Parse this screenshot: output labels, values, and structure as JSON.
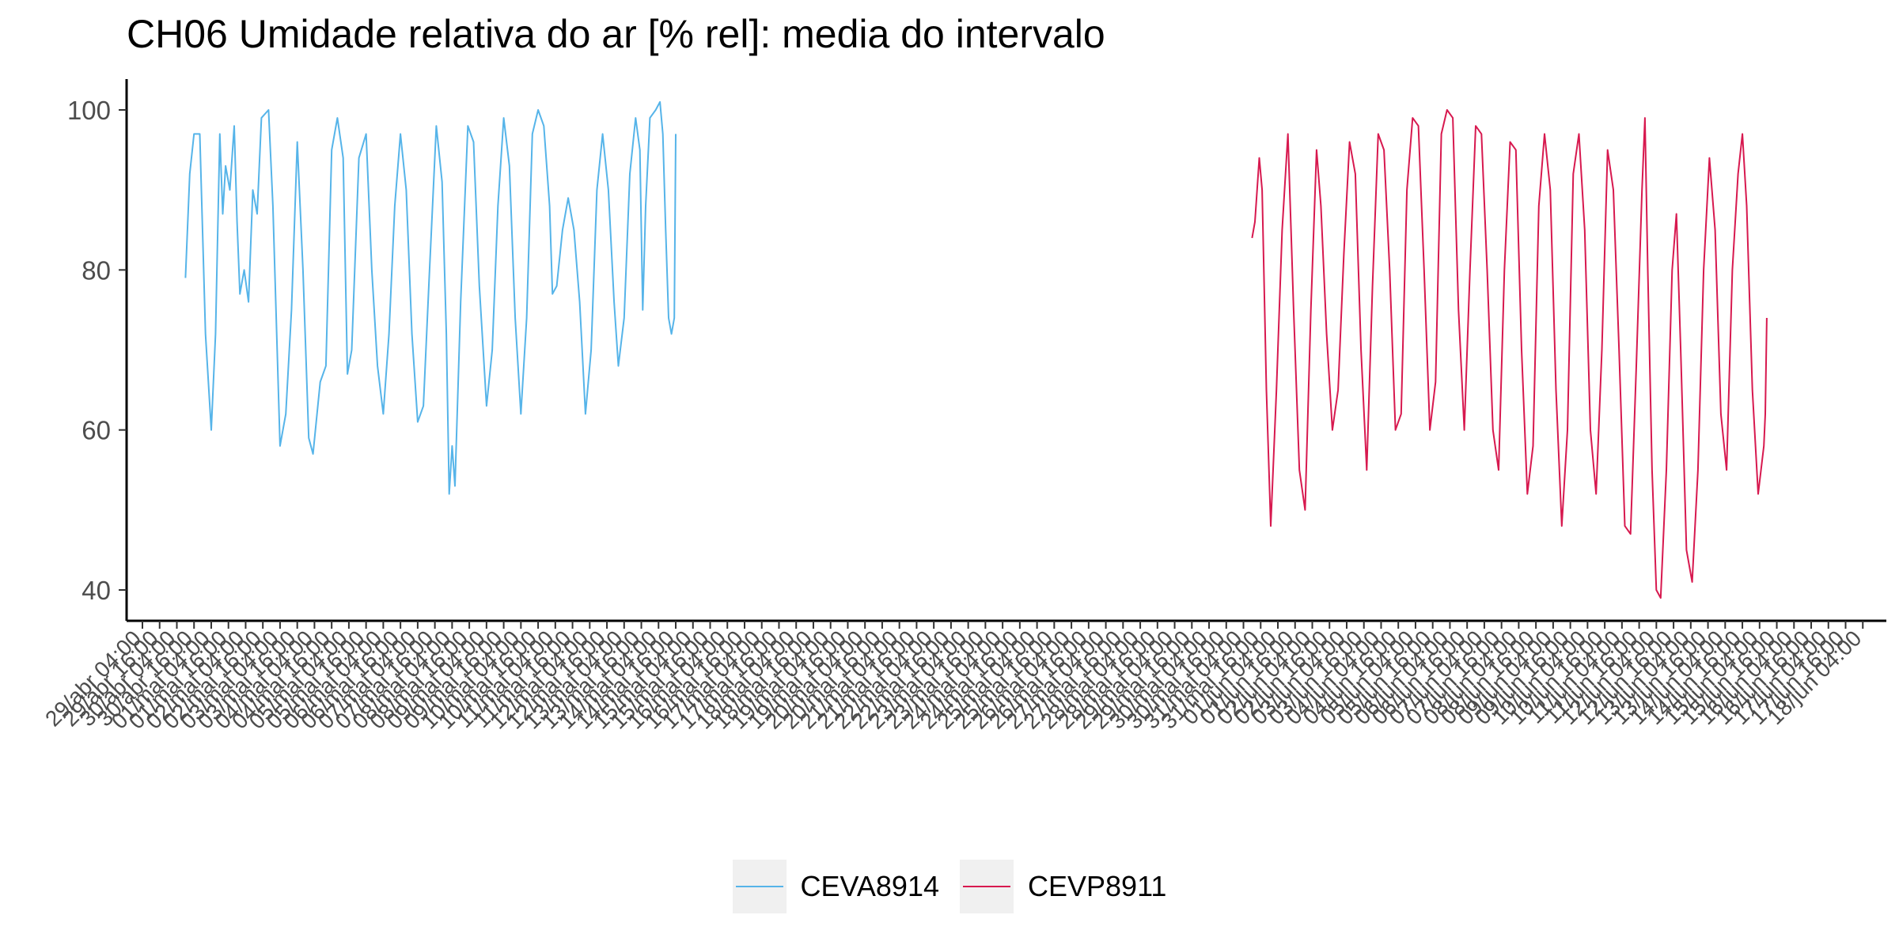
{
  "chart_data": {
    "type": "line",
    "title": "CH06 Umidade relativa do ar [% rel]: media do intervalo",
    "xlabel": "",
    "ylabel": "",
    "ylim": [
      36,
      104
    ],
    "yticks": [
      40,
      60,
      80,
      100
    ],
    "x_range": [
      "2024-04-29 04:00",
      "2024-06-18 16:00"
    ],
    "x_tick_start": "2024-04-29 04:00",
    "x_tick_step_hours": 12,
    "x_tick_count": 101,
    "x_tick_labels": [
      "29/abr 04:00",
      "29/abr 16:00",
      "30/abr 04:00",
      "30/abr 16:00",
      "01/mai 04:00",
      "01/mai 16:00",
      "02/mai 04:00",
      "02/mai 16:00",
      "03/mai 04:00",
      "03/mai 16:00",
      "04/mai 04:00",
      "04/mai 16:00",
      "05/mai 04:00",
      "05/mai 16:00",
      "06/mai 04:00",
      "06/mai 16:00",
      "07/mai 04:00",
      "07/mai 16:00",
      "08/mai 04:00",
      "08/mai 16:00",
      "09/mai 04:00",
      "09/mai 16:00",
      "10/mai 04:00",
      "10/mai 16:00",
      "11/mai 04:00",
      "11/mai 16:00",
      "12/mai 04:00",
      "12/mai 16:00",
      "13/mai 04:00",
      "13/mai 16:00",
      "14/mai 04:00",
      "14/mai 16:00",
      "15/mai 04:00",
      "15/mai 16:00",
      "16/mai 04:00",
      "16/mai 16:00",
      "17/mai 04:00",
      "17/mai 16:00",
      "18/mai 04:00",
      "18/mai 16:00",
      "19/mai 04:00",
      "19/mai 16:00",
      "20/mai 04:00",
      "20/mai 16:00",
      "21/mai 04:00",
      "21/mai 16:00",
      "22/mai 04:00",
      "22/mai 16:00",
      "23/mai 04:00",
      "23/mai 16:00",
      "24/mai 04:00",
      "24/mai 16:00",
      "25/mai 04:00",
      "25/mai 16:00",
      "26/mai 04:00",
      "26/mai 16:00",
      "27/mai 04:00",
      "27/mai 16:00",
      "28/mai 04:00",
      "28/mai 16:00",
      "29/mai 04:00",
      "29/mai 16:00",
      "30/mai 04:00",
      "30/mai 16:00",
      "31/mai 04:00",
      "31/mai 16:00",
      "01/jun 04:00",
      "01/jun 16:00",
      "02/jun 04:00",
      "02/jun 16:00",
      "03/jun 04:00",
      "03/jun 16:00",
      "04/jun 04:00",
      "04/jun 16:00",
      "05/jun 04:00",
      "05/jun 16:00",
      "06/jun 04:00",
      "06/jun 16:00",
      "07/jun 04:00",
      "07/jun 16:00",
      "08/jun 04:00",
      "08/jun 16:00",
      "09/jun 04:00",
      "09/jun 16:00",
      "10/jun 04:00",
      "10/jun 16:00",
      "11/jun 04:00",
      "11/jun 16:00",
      "12/jun 04:00",
      "12/jun 16:00",
      "13/jun 04:00",
      "13/jun 16:00",
      "14/jun 04:00",
      "14/jun 16:00",
      "15/jun 04:00",
      "15/jun 16:00",
      "16/jun 04:00",
      "16/jun 16:00",
      "17/jun 04:00",
      "17/jun 16:00",
      "18/jun 04:00"
    ],
    "grid": false,
    "legend_position": "bottom",
    "series": [
      {
        "name": "CEVA8914",
        "color": "#56B4E9",
        "points": [
          [
            "2024-04-30 10:00",
            79
          ],
          [
            "2024-04-30 13:00",
            92
          ],
          [
            "2024-04-30 16:00",
            97
          ],
          [
            "2024-04-30 20:00",
            97
          ],
          [
            "2024-05-01 00:00",
            72
          ],
          [
            "2024-05-01 04:00",
            60
          ],
          [
            "2024-05-01 07:00",
            72
          ],
          [
            "2024-05-01 10:00",
            97
          ],
          [
            "2024-05-01 12:00",
            87
          ],
          [
            "2024-05-01 14:00",
            93
          ],
          [
            "2024-05-01 17:00",
            90
          ],
          [
            "2024-05-01 20:00",
            98
          ],
          [
            "2024-05-01 22:00",
            86
          ],
          [
            "2024-05-02 00:00",
            77
          ],
          [
            "2024-05-02 03:00",
            80
          ],
          [
            "2024-05-02 06:00",
            76
          ],
          [
            "2024-05-02 09:00",
            90
          ],
          [
            "2024-05-02 12:00",
            87
          ],
          [
            "2024-05-02 15:00",
            99
          ],
          [
            "2024-05-02 20:00",
            100
          ],
          [
            "2024-05-02 23:00",
            88
          ],
          [
            "2024-05-03 04:00",
            58
          ],
          [
            "2024-05-03 08:00",
            62
          ],
          [
            "2024-05-03 12:00",
            75
          ],
          [
            "2024-05-03 16:00",
            96
          ],
          [
            "2024-05-03 20:00",
            80
          ],
          [
            "2024-05-04 00:00",
            59
          ],
          [
            "2024-05-04 03:00",
            57
          ],
          [
            "2024-05-04 08:00",
            66
          ],
          [
            "2024-05-04 12:00",
            68
          ],
          [
            "2024-05-04 16:00",
            95
          ],
          [
            "2024-05-04 20:00",
            99
          ],
          [
            "2024-05-05 00:00",
            94
          ],
          [
            "2024-05-05 03:00",
            67
          ],
          [
            "2024-05-05 06:00",
            70
          ],
          [
            "2024-05-05 11:00",
            94
          ],
          [
            "2024-05-05 16:00",
            97
          ],
          [
            "2024-05-05 20:00",
            80
          ],
          [
            "2024-05-06 00:00",
            68
          ],
          [
            "2024-05-06 04:00",
            62
          ],
          [
            "2024-05-06 08:00",
            72
          ],
          [
            "2024-05-06 12:00",
            88
          ],
          [
            "2024-05-06 16:00",
            97
          ],
          [
            "2024-05-06 20:00",
            90
          ],
          [
            "2024-05-07 00:00",
            72
          ],
          [
            "2024-05-07 04:00",
            61
          ],
          [
            "2024-05-07 08:00",
            63
          ],
          [
            "2024-05-07 12:00",
            79
          ],
          [
            "2024-05-07 17:00",
            98
          ],
          [
            "2024-05-07 21:00",
            91
          ],
          [
            "2024-05-08 00:00",
            72
          ],
          [
            "2024-05-08 02:00",
            52
          ],
          [
            "2024-05-08 04:00",
            58
          ],
          [
            "2024-05-08 06:00",
            53
          ],
          [
            "2024-05-08 10:00",
            76
          ],
          [
            "2024-05-08 15:00",
            98
          ],
          [
            "2024-05-08 19:00",
            96
          ],
          [
            "2024-05-08 23:00",
            78
          ],
          [
            "2024-05-09 04:00",
            63
          ],
          [
            "2024-05-09 08:00",
            70
          ],
          [
            "2024-05-09 12:00",
            88
          ],
          [
            "2024-05-09 16:00",
            99
          ],
          [
            "2024-05-09 20:00",
            93
          ],
          [
            "2024-05-10 00:00",
            74
          ],
          [
            "2024-05-10 04:00",
            62
          ],
          [
            "2024-05-10 08:00",
            74
          ],
          [
            "2024-05-10 12:00",
            97
          ],
          [
            "2024-05-10 16:00",
            100
          ],
          [
            "2024-05-10 20:00",
            98
          ],
          [
            "2024-05-11 00:00",
            88
          ],
          [
            "2024-05-11 02:00",
            77
          ],
          [
            "2024-05-11 05:00",
            78
          ],
          [
            "2024-05-11 09:00",
            85
          ],
          [
            "2024-05-11 13:00",
            89
          ],
          [
            "2024-05-11 17:00",
            85
          ],
          [
            "2024-05-11 21:00",
            76
          ],
          [
            "2024-05-12 01:00",
            62
          ],
          [
            "2024-05-12 05:00",
            70
          ],
          [
            "2024-05-12 09:00",
            90
          ],
          [
            "2024-05-12 13:00",
            97
          ],
          [
            "2024-05-12 17:00",
            90
          ],
          [
            "2024-05-12 21:00",
            76
          ],
          [
            "2024-05-13 00:00",
            68
          ],
          [
            "2024-05-13 04:00",
            74
          ],
          [
            "2024-05-13 08:00",
            92
          ],
          [
            "2024-05-13 12:00",
            99
          ],
          [
            "2024-05-13 15:00",
            95
          ],
          [
            "2024-05-13 17:00",
            75
          ],
          [
            "2024-05-13 19:00",
            88
          ],
          [
            "2024-05-13 22:00",
            99
          ],
          [
            "2024-05-14 02:00",
            100
          ],
          [
            "2024-05-14 05:00",
            101
          ],
          [
            "2024-05-14 07:00",
            97
          ],
          [
            "2024-05-14 09:00",
            85
          ],
          [
            "2024-05-14 11:00",
            74
          ],
          [
            "2024-05-14 13:00",
            72
          ],
          [
            "2024-05-14 15:00",
            74
          ],
          [
            "2024-05-14 16:00",
            97
          ]
        ]
      },
      {
        "name": "CEVP8911",
        "color": "#D7194F",
        "points": [
          [
            "2024-05-31 10:00",
            84
          ],
          [
            "2024-05-31 12:00",
            86
          ],
          [
            "2024-05-31 15:00",
            94
          ],
          [
            "2024-05-31 17:00",
            90
          ],
          [
            "2024-05-31 20:00",
            65
          ],
          [
            "2024-05-31 23:00",
            48
          ],
          [
            "2024-06-01 03:00",
            65
          ],
          [
            "2024-06-01 07:00",
            85
          ],
          [
            "2024-06-01 11:00",
            97
          ],
          [
            "2024-06-01 15:00",
            75
          ],
          [
            "2024-06-01 19:00",
            55
          ],
          [
            "2024-06-01 23:00",
            50
          ],
          [
            "2024-06-02 03:00",
            75
          ],
          [
            "2024-06-02 07:00",
            95
          ],
          [
            "2024-06-02 10:00",
            88
          ],
          [
            "2024-06-02 14:00",
            72
          ],
          [
            "2024-06-02 18:00",
            60
          ],
          [
            "2024-06-02 22:00",
            65
          ],
          [
            "2024-06-03 02:00",
            82
          ],
          [
            "2024-06-03 06:00",
            96
          ],
          [
            "2024-06-03 10:00",
            92
          ],
          [
            "2024-06-03 14:00",
            70
          ],
          [
            "2024-06-03 18:00",
            55
          ],
          [
            "2024-06-03 22:00",
            78
          ],
          [
            "2024-06-04 02:00",
            97
          ],
          [
            "2024-06-04 06:00",
            95
          ],
          [
            "2024-06-04 10:00",
            80
          ],
          [
            "2024-06-04 14:00",
            60
          ],
          [
            "2024-06-04 18:00",
            62
          ],
          [
            "2024-06-04 22:00",
            90
          ],
          [
            "2024-06-05 02:00",
            99
          ],
          [
            "2024-06-05 06:00",
            98
          ],
          [
            "2024-06-05 10:00",
            80
          ],
          [
            "2024-06-05 14:00",
            60
          ],
          [
            "2024-06-05 18:00",
            66
          ],
          [
            "2024-06-05 22:00",
            97
          ],
          [
            "2024-06-06 02:00",
            100
          ],
          [
            "2024-06-06 06:00",
            99
          ],
          [
            "2024-06-06 10:00",
            75
          ],
          [
            "2024-06-06 14:00",
            60
          ],
          [
            "2024-06-06 18:00",
            80
          ],
          [
            "2024-06-06 22:00",
            98
          ],
          [
            "2024-06-07 02:00",
            97
          ],
          [
            "2024-06-07 06:00",
            80
          ],
          [
            "2024-06-07 10:00",
            60
          ],
          [
            "2024-06-07 14:00",
            55
          ],
          [
            "2024-06-07 18:00",
            80
          ],
          [
            "2024-06-07 22:00",
            96
          ],
          [
            "2024-06-08 02:00",
            95
          ],
          [
            "2024-06-08 06:00",
            70
          ],
          [
            "2024-06-08 10:00",
            52
          ],
          [
            "2024-06-08 14:00",
            58
          ],
          [
            "2024-06-08 18:00",
            88
          ],
          [
            "2024-06-08 22:00",
            97
          ],
          [
            "2024-06-09 02:00",
            90
          ],
          [
            "2024-06-09 06:00",
            65
          ],
          [
            "2024-06-09 10:00",
            48
          ],
          [
            "2024-06-09 14:00",
            60
          ],
          [
            "2024-06-09 18:00",
            92
          ],
          [
            "2024-06-09 22:00",
            97
          ],
          [
            "2024-06-10 02:00",
            85
          ],
          [
            "2024-06-10 06:00",
            60
          ],
          [
            "2024-06-10 10:00",
            52
          ],
          [
            "2024-06-10 14:00",
            70
          ],
          [
            "2024-06-10 18:00",
            95
          ],
          [
            "2024-06-10 22:00",
            90
          ],
          [
            "2024-06-11 02:00",
            70
          ],
          [
            "2024-06-11 06:00",
            48
          ],
          [
            "2024-06-11 10:00",
            47
          ],
          [
            "2024-06-11 14:00",
            68
          ],
          [
            "2024-06-11 18:00",
            90
          ],
          [
            "2024-06-11 20:00",
            99
          ],
          [
            "2024-06-11 22:00",
            80
          ],
          [
            "2024-06-12 01:00",
            55
          ],
          [
            "2024-06-12 04:00",
            40
          ],
          [
            "2024-06-12 07:00",
            39
          ],
          [
            "2024-06-12 11:00",
            55
          ],
          [
            "2024-06-12 15:00",
            80
          ],
          [
            "2024-06-12 18:00",
            87
          ],
          [
            "2024-06-12 21:00",
            70
          ],
          [
            "2024-06-13 01:00",
            45
          ],
          [
            "2024-06-13 05:00",
            41
          ],
          [
            "2024-06-13 09:00",
            55
          ],
          [
            "2024-06-13 13:00",
            80
          ],
          [
            "2024-06-13 17:00",
            94
          ],
          [
            "2024-06-13 21:00",
            85
          ],
          [
            "2024-06-14 01:00",
            62
          ],
          [
            "2024-06-14 05:00",
            55
          ],
          [
            "2024-06-14 09:00",
            80
          ],
          [
            "2024-06-14 13:00",
            92
          ],
          [
            "2024-06-14 16:00",
            97
          ],
          [
            "2024-06-14 19:00",
            88
          ],
          [
            "2024-06-14 23:00",
            65
          ],
          [
            "2024-06-15 03:00",
            52
          ],
          [
            "2024-06-15 07:00",
            58
          ],
          [
            "2024-06-15 08:00",
            62
          ],
          [
            "2024-06-15 09:00",
            74
          ]
        ]
      }
    ]
  }
}
